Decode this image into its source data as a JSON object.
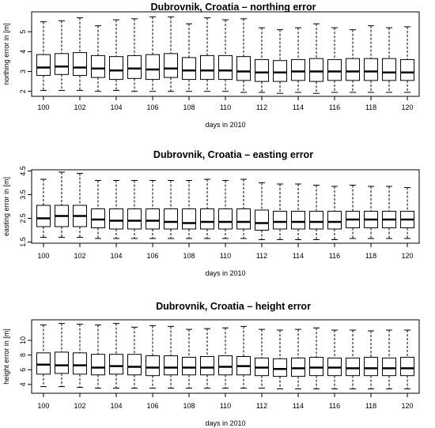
{
  "chart_data": [
    {
      "type": "box",
      "title": "Dubrovnik, Croatia – northing error",
      "xlabel": "days in 2010",
      "ylabel": "northing error in [m]",
      "x": [
        100,
        101,
        102,
        103,
        104,
        105,
        106,
        107,
        108,
        109,
        110,
        111,
        112,
        113,
        114,
        115,
        116,
        117,
        118,
        119,
        120
      ],
      "x_tick_labels": [
        "100",
        "102",
        "104",
        "106",
        "108",
        "110",
        "112",
        "114",
        "116",
        "118",
        "120"
      ],
      "y_ticks": [
        2,
        3,
        4,
        5
      ],
      "y_tick_labels": [
        "2",
        "3",
        "4",
        "5"
      ],
      "ylim": [
        1.75,
        6.0
      ],
      "boxes": [
        {
          "x": 100,
          "whisker_low": 2.05,
          "q1": 2.8,
          "median": 3.2,
          "q3": 3.85,
          "whisker_high": 5.5
        },
        {
          "x": 101,
          "whisker_low": 2.05,
          "q1": 2.85,
          "median": 3.25,
          "q3": 3.9,
          "whisker_high": 5.55
        },
        {
          "x": 102,
          "whisker_low": 2.05,
          "q1": 2.8,
          "median": 3.2,
          "q3": 3.95,
          "whisker_high": 5.7
        },
        {
          "x": 103,
          "whisker_low": 2.0,
          "q1": 2.7,
          "median": 3.15,
          "q3": 3.8,
          "whisker_high": 5.3
        },
        {
          "x": 104,
          "whisker_low": 2.05,
          "q1": 2.6,
          "median": 3.05,
          "q3": 3.75,
          "whisker_high": 5.6
        },
        {
          "x": 105,
          "whisker_low": 2.0,
          "q1": 2.65,
          "median": 3.15,
          "q3": 3.8,
          "whisker_high": 5.65
        },
        {
          "x": 106,
          "whisker_low": 2.0,
          "q1": 2.6,
          "median": 3.1,
          "q3": 3.85,
          "whisker_high": 5.75
        },
        {
          "x": 107,
          "whisker_low": 2.0,
          "q1": 2.7,
          "median": 3.15,
          "q3": 3.9,
          "whisker_high": 5.75
        },
        {
          "x": 108,
          "whisker_low": 2.0,
          "q1": 2.6,
          "median": 3.05,
          "q3": 3.7,
          "whisker_high": 5.4
        },
        {
          "x": 109,
          "whisker_low": 2.0,
          "q1": 2.6,
          "median": 3.05,
          "q3": 3.8,
          "whisker_high": 5.7
        },
        {
          "x": 110,
          "whisker_low": 2.0,
          "q1": 2.6,
          "median": 3.05,
          "q3": 3.8,
          "whisker_high": 5.6
        },
        {
          "x": 111,
          "whisker_low": 1.95,
          "q1": 2.55,
          "median": 3.0,
          "q3": 3.75,
          "whisker_high": 5.65
        },
        {
          "x": 112,
          "whisker_low": 1.95,
          "q1": 2.5,
          "median": 2.95,
          "q3": 3.6,
          "whisker_high": 5.2
        },
        {
          "x": 113,
          "whisker_low": 1.9,
          "q1": 2.5,
          "median": 2.95,
          "q3": 3.55,
          "whisker_high": 5.1
        },
        {
          "x": 114,
          "whisker_low": 1.95,
          "q1": 2.55,
          "median": 3.0,
          "q3": 3.6,
          "whisker_high": 5.2
        },
        {
          "x": 115,
          "whisker_low": 1.9,
          "q1": 2.5,
          "median": 3.0,
          "q3": 3.65,
          "whisker_high": 5.4
        },
        {
          "x": 116,
          "whisker_low": 1.95,
          "q1": 2.55,
          "median": 3.0,
          "q3": 3.6,
          "whisker_high": 5.2
        },
        {
          "x": 117,
          "whisker_low": 1.95,
          "q1": 2.55,
          "median": 3.0,
          "q3": 3.65,
          "whisker_high": 5.1
        },
        {
          "x": 118,
          "whisker_low": 1.95,
          "q1": 2.55,
          "median": 3.0,
          "q3": 3.65,
          "whisker_high": 5.3
        },
        {
          "x": 119,
          "whisker_low": 1.95,
          "q1": 2.55,
          "median": 2.95,
          "q3": 3.65,
          "whisker_high": 5.2
        },
        {
          "x": 120,
          "whisker_low": 1.95,
          "q1": 2.55,
          "median": 2.95,
          "q3": 3.6,
          "whisker_high": 5.25
        }
      ]
    },
    {
      "type": "box",
      "title": "Dubrovnik, Croatia –  easting error",
      "xlabel": "days in 2010",
      "ylabel": "easting error in [m]",
      "x": [
        100,
        101,
        102,
        103,
        104,
        105,
        106,
        107,
        108,
        109,
        110,
        111,
        112,
        113,
        114,
        115,
        116,
        117,
        118,
        119,
        120
      ],
      "x_tick_labels": [
        "100",
        "102",
        "104",
        "106",
        "108",
        "110",
        "112",
        "114",
        "116",
        "118",
        "120"
      ],
      "y_ticks": [
        1.5,
        2.5,
        3.5,
        4.5
      ],
      "y_tick_labels": [
        "1.5",
        "2.5",
        "3.5",
        "4.5"
      ],
      "ylim": [
        1.45,
        4.55
      ],
      "boxes": [
        {
          "x": 100,
          "whisker_low": 1.7,
          "q1": 2.15,
          "median": 2.5,
          "q3": 3.05,
          "whisker_high": 4.15
        },
        {
          "x": 101,
          "whisker_low": 1.7,
          "q1": 2.15,
          "median": 2.6,
          "q3": 3.05,
          "whisker_high": 4.45
        },
        {
          "x": 102,
          "whisker_low": 1.7,
          "q1": 2.15,
          "median": 2.6,
          "q3": 3.05,
          "whisker_high": 4.4
        },
        {
          "x": 103,
          "whisker_low": 1.65,
          "q1": 2.1,
          "median": 2.45,
          "q3": 2.9,
          "whisker_high": 4.1
        },
        {
          "x": 104,
          "whisker_low": 1.65,
          "q1": 2.05,
          "median": 2.4,
          "q3": 2.9,
          "whisker_high": 4.1
        },
        {
          "x": 105,
          "whisker_low": 1.65,
          "q1": 2.05,
          "median": 2.4,
          "q3": 2.9,
          "whisker_high": 4.1
        },
        {
          "x": 106,
          "whisker_low": 1.65,
          "q1": 2.05,
          "median": 2.4,
          "q3": 2.9,
          "whisker_high": 4.1
        },
        {
          "x": 107,
          "whisker_low": 1.65,
          "q1": 2.05,
          "median": 2.35,
          "q3": 2.9,
          "whisker_high": 4.1
        },
        {
          "x": 108,
          "whisker_low": 1.65,
          "q1": 2.05,
          "median": 2.3,
          "q3": 2.9,
          "whisker_high": 4.1
        },
        {
          "x": 109,
          "whisker_low": 1.65,
          "q1": 2.05,
          "median": 2.35,
          "q3": 2.9,
          "whisker_high": 4.15
        },
        {
          "x": 110,
          "whisker_low": 1.65,
          "q1": 2.05,
          "median": 2.35,
          "q3": 2.9,
          "whisker_high": 4.1
        },
        {
          "x": 111,
          "whisker_low": 1.65,
          "q1": 2.05,
          "median": 2.35,
          "q3": 2.9,
          "whisker_high": 4.15
        },
        {
          "x": 112,
          "whisker_low": 1.6,
          "q1": 2.0,
          "median": 2.3,
          "q3": 2.85,
          "whisker_high": 4.0
        },
        {
          "x": 113,
          "whisker_low": 1.6,
          "q1": 2.05,
          "median": 2.35,
          "q3": 2.8,
          "whisker_high": 3.95
        },
        {
          "x": 114,
          "whisker_low": 1.6,
          "q1": 2.05,
          "median": 2.35,
          "q3": 2.8,
          "whisker_high": 3.95
        },
        {
          "x": 115,
          "whisker_low": 1.6,
          "q1": 2.05,
          "median": 2.35,
          "q3": 2.8,
          "whisker_high": 3.9
        },
        {
          "x": 116,
          "whisker_low": 1.6,
          "q1": 2.05,
          "median": 2.35,
          "q3": 2.8,
          "whisker_high": 3.85
        },
        {
          "x": 117,
          "whisker_low": 1.65,
          "q1": 2.1,
          "median": 2.45,
          "q3": 2.8,
          "whisker_high": 3.9
        },
        {
          "x": 118,
          "whisker_low": 1.65,
          "q1": 2.1,
          "median": 2.45,
          "q3": 2.8,
          "whisker_high": 3.85
        },
        {
          "x": 119,
          "whisker_low": 1.65,
          "q1": 2.1,
          "median": 2.45,
          "q3": 2.8,
          "whisker_high": 3.85
        },
        {
          "x": 120,
          "whisker_low": 1.65,
          "q1": 2.1,
          "median": 2.45,
          "q3": 2.8,
          "whisker_high": 3.8
        }
      ]
    },
    {
      "type": "box",
      "title": "Dubrovnik, Croatia –  height error",
      "xlabel": "days in 2010",
      "ylabel": "height error in [m]",
      "x": [
        100,
        101,
        102,
        103,
        104,
        105,
        106,
        107,
        108,
        109,
        110,
        111,
        112,
        113,
        114,
        115,
        116,
        117,
        118,
        119,
        120
      ],
      "x_tick_labels": [
        "100",
        "102",
        "104",
        "106",
        "108",
        "110",
        "112",
        "114",
        "116",
        "118",
        "120"
      ],
      "y_ticks": [
        4,
        6,
        8,
        10
      ],
      "y_tick_labels": [
        "4",
        "6",
        "8",
        "10"
      ],
      "ylim": [
        2.8,
        12.8
      ],
      "boxes": [
        {
          "x": 100,
          "whisker_low": 3.7,
          "q1": 5.4,
          "median": 6.7,
          "q3": 8.3,
          "whisker_high": 12.1
        },
        {
          "x": 101,
          "whisker_low": 3.7,
          "q1": 5.5,
          "median": 6.6,
          "q3": 8.4,
          "whisker_high": 12.3
        },
        {
          "x": 102,
          "whisker_low": 3.6,
          "q1": 5.4,
          "median": 6.6,
          "q3": 8.3,
          "whisker_high": 12.2
        },
        {
          "x": 103,
          "whisker_low": 3.5,
          "q1": 5.3,
          "median": 6.3,
          "q3": 8.1,
          "whisker_high": 12.1
        },
        {
          "x": 104,
          "whisker_low": 3.5,
          "q1": 5.4,
          "median": 6.5,
          "q3": 8.1,
          "whisker_high": 12.3
        },
        {
          "x": 105,
          "whisker_low": 3.5,
          "q1": 5.3,
          "median": 6.4,
          "q3": 8.1,
          "whisker_high": 11.8
        },
        {
          "x": 106,
          "whisker_low": 3.5,
          "q1": 5.2,
          "median": 6.3,
          "q3": 7.9,
          "whisker_high": 12.0
        },
        {
          "x": 107,
          "whisker_low": 3.5,
          "q1": 5.3,
          "median": 6.3,
          "q3": 7.9,
          "whisker_high": 11.9
        },
        {
          "x": 108,
          "whisker_low": 3.5,
          "q1": 5.3,
          "median": 6.3,
          "q3": 7.7,
          "whisker_high": 11.5
        },
        {
          "x": 109,
          "whisker_low": 3.5,
          "q1": 5.3,
          "median": 6.3,
          "q3": 7.8,
          "whisker_high": 11.6
        },
        {
          "x": 110,
          "whisker_low": 3.5,
          "q1": 5.3,
          "median": 6.4,
          "q3": 7.9,
          "whisker_high": 11.7
        },
        {
          "x": 111,
          "whisker_low": 3.5,
          "q1": 5.3,
          "median": 6.5,
          "q3": 7.8,
          "whisker_high": 11.9
        },
        {
          "x": 112,
          "whisker_low": 3.5,
          "q1": 5.2,
          "median": 6.3,
          "q3": 7.6,
          "whisker_high": 11.5
        },
        {
          "x": 113,
          "whisker_low": 3.4,
          "q1": 5.1,
          "median": 6.1,
          "q3": 7.5,
          "whisker_high": 11.4
        },
        {
          "x": 114,
          "whisker_low": 3.4,
          "q1": 5.1,
          "median": 6.2,
          "q3": 7.6,
          "whisker_high": 11.5
        },
        {
          "x": 115,
          "whisker_low": 3.4,
          "q1": 5.2,
          "median": 6.3,
          "q3": 7.7,
          "whisker_high": 11.7
        },
        {
          "x": 116,
          "whisker_low": 3.4,
          "q1": 5.2,
          "median": 6.3,
          "q3": 7.6,
          "whisker_high": 11.4
        },
        {
          "x": 117,
          "whisker_low": 3.4,
          "q1": 5.2,
          "median": 6.2,
          "q3": 7.6,
          "whisker_high": 11.4
        },
        {
          "x": 118,
          "whisker_low": 3.4,
          "q1": 5.2,
          "median": 6.2,
          "q3": 7.7,
          "whisker_high": 11.3
        },
        {
          "x": 119,
          "whisker_low": 3.4,
          "q1": 5.2,
          "median": 6.2,
          "q3": 7.6,
          "whisker_high": 11.4
        },
        {
          "x": 120,
          "whisker_low": 3.4,
          "q1": 5.2,
          "median": 6.2,
          "q3": 7.7,
          "whisker_high": 11.4
        }
      ]
    }
  ]
}
